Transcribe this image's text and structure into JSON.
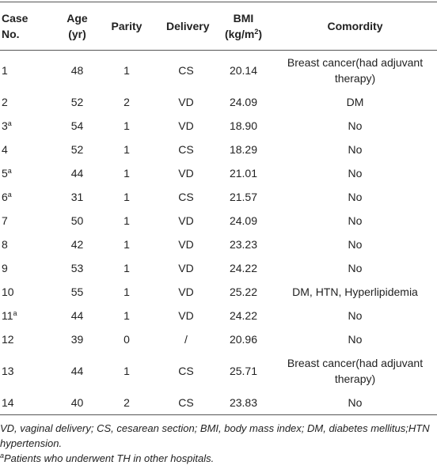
{
  "table": {
    "header": [
      {
        "text": "Case No."
      },
      {
        "text": "Age (yr)"
      },
      {
        "text": "Parity"
      },
      {
        "text": "Delivery"
      },
      {
        "text": "BMI (kg/m",
        "sup": "2",
        "after": ")"
      },
      {
        "text": "Comordity"
      }
    ],
    "rows": [
      {
        "case": "1",
        "cells": [
          "48",
          "1",
          "CS",
          "20.14",
          "Breast cancer(had adjuvant therapy)"
        ]
      },
      {
        "case": "2",
        "cells": [
          "52",
          "2",
          "VD",
          "24.09",
          "DM"
        ]
      },
      {
        "case": "3",
        "mark": "a",
        "cells": [
          "54",
          "1",
          "VD",
          "18.90",
          "No"
        ]
      },
      {
        "case": "4",
        "cells": [
          "52",
          "1",
          "CS",
          "18.29",
          "No"
        ]
      },
      {
        "case": "5",
        "mark": "a",
        "cells": [
          "44",
          "1",
          "VD",
          "21.01",
          "No"
        ]
      },
      {
        "case": "6",
        "mark": "a",
        "cells": [
          "31",
          "1",
          "CS",
          "21.57",
          "No"
        ]
      },
      {
        "case": "7",
        "cells": [
          "50",
          "1",
          "VD",
          "24.09",
          "No"
        ]
      },
      {
        "case": "8",
        "cells": [
          "42",
          "1",
          "VD",
          "23.23",
          "No"
        ]
      },
      {
        "case": "9",
        "cells": [
          "53",
          "1",
          "VD",
          "24.22",
          "No"
        ]
      },
      {
        "case": "10",
        "cells": [
          "55",
          "1",
          "VD",
          "25.22",
          "DM, HTN, Hyperlipidemia"
        ]
      },
      {
        "case": "11",
        "mark": "a",
        "cells": [
          "44",
          "1",
          "VD",
          "24.22",
          "No"
        ]
      },
      {
        "case": "12",
        "cells": [
          "39",
          "0",
          "/",
          "20.96",
          "No"
        ]
      },
      {
        "case": "13",
        "cells": [
          "44",
          "1",
          "CS",
          "25.71",
          "Breast cancer(had adjuvant therapy)"
        ]
      },
      {
        "case": "14",
        "cells": [
          "40",
          "2",
          "CS",
          "23.83",
          "No"
        ]
      }
    ]
  },
  "footnotes": {
    "abbreviations": "VD, vaginal delivery; CS, cesarean section; BMI, body mass index; DM, diabetes mellitus;HTN hypertension.",
    "note_mark": "a",
    "note": "Patients who underwent TH in other hospitals."
  }
}
